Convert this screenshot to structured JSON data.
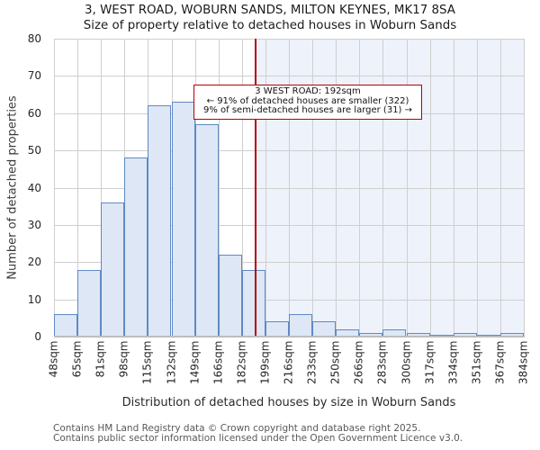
{
  "title": {
    "line1": "3, WEST ROAD, WOBURN SANDS, MILTON KEYNES, MK17 8SA",
    "line2": "Size of property relative to detached houses in Woburn Sands"
  },
  "chart_data": {
    "type": "bar",
    "bin_edge_labels": [
      "48sqm",
      "65sqm",
      "81sqm",
      "98sqm",
      "115sqm",
      "132sqm",
      "149sqm",
      "166sqm",
      "182sqm",
      "199sqm",
      "216sqm",
      "233sqm",
      "250sqm",
      "266sqm",
      "283sqm",
      "300sqm",
      "317sqm",
      "334sqm",
      "351sqm",
      "367sqm",
      "384sqm"
    ],
    "values": [
      6,
      18,
      36,
      48,
      62,
      63,
      57,
      22,
      18,
      4,
      6,
      4,
      2,
      1,
      2,
      1,
      0,
      1,
      0,
      1
    ],
    "x_min_sqm": 48,
    "x_max_sqm": 384,
    "ylim": [
      0,
      80
    ],
    "yticks": [
      0,
      10,
      20,
      30,
      40,
      50,
      60,
      70,
      80
    ],
    "ylabel": "Number of detached properties",
    "xlabel": "Distribution of detached houses by size in Woburn Sands",
    "grid": true,
    "marker": {
      "value_sqm": 192,
      "shade_side": "right"
    },
    "colors": {
      "bar_fill": "#dde7f5",
      "bar_edge": "#6089c4",
      "marker_line": "#b40000",
      "shade": "#eef2fb",
      "grid": "#cfcfcf"
    }
  },
  "annotation": {
    "line1": "3 WEST ROAD: 192sqm",
    "line2": "← 91% of detached houses are smaller (322)",
    "line3": "9% of semi-detached houses are larger (31) →"
  },
  "footer": {
    "line1": "Contains HM Land Registry data © Crown copyright and database right 2025.",
    "line2": "Contains public sector information licensed under the Open Government Licence v3.0."
  }
}
